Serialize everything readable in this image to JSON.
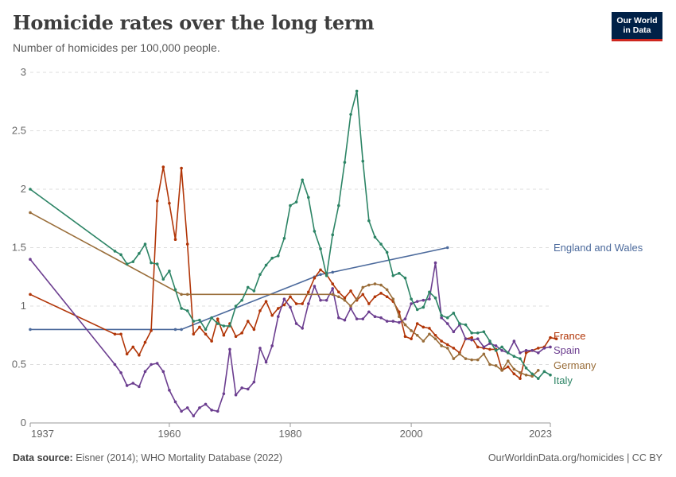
{
  "header": {
    "title": "Homicide rates over the long term",
    "subtitle": "Number of homicides per 100,000 people."
  },
  "logo": {
    "line1": "Our World",
    "line2": "in Data"
  },
  "footer": {
    "source_label": "Data source:",
    "source_text": " Eisner (2014); WHO Mortality Database (2022)",
    "right_text": "OurWorldinData.org/homicides | CC BY"
  },
  "chart_data": {
    "type": "line",
    "title": "Homicide rates over the long term",
    "subtitle": "Number of homicides per 100,000 people.",
    "xlabel": "",
    "ylabel": "",
    "xlim": [
      1937,
      2023
    ],
    "ylim": [
      0,
      3
    ],
    "x_ticks": [
      "1937",
      "1960",
      "1980",
      "2000",
      "2023"
    ],
    "y_ticks": [
      "0",
      "0.5",
      "1",
      "1.5",
      "2",
      "2.5",
      "3"
    ],
    "grid": "horizontal dashed",
    "legend": "right-end labels",
    "series": [
      {
        "name": "England and Wales",
        "color": "#4c6a9c",
        "points": [
          [
            1937,
            0.8
          ],
          [
            1961,
            0.8
          ],
          [
            1962,
            0.8
          ],
          [
            1984,
            1.25
          ],
          [
            1985,
            1.27
          ],
          [
            1986,
            1.28
          ],
          [
            1987,
            1.29
          ],
          [
            2006,
            1.5
          ]
        ]
      },
      {
        "name": "France",
        "color": "#b13507",
        "points": [
          [
            1937,
            1.1
          ],
          [
            1951,
            0.76
          ],
          [
            1952,
            0.76
          ],
          [
            1953,
            0.59
          ],
          [
            1954,
            0.65
          ],
          [
            1955,
            0.58
          ],
          [
            1956,
            0.69
          ],
          [
            1957,
            0.79
          ],
          [
            1958,
            1.9
          ],
          [
            1959,
            2.19
          ],
          [
            1960,
            1.88
          ],
          [
            1961,
            1.57
          ],
          [
            1962,
            2.18
          ],
          [
            1963,
            1.53
          ],
          [
            1964,
            0.76
          ],
          [
            1965,
            0.82
          ],
          [
            1966,
            0.76
          ],
          [
            1967,
            0.7
          ],
          [
            1968,
            0.89
          ],
          [
            1969,
            0.75
          ],
          [
            1970,
            0.85
          ],
          [
            1971,
            0.74
          ],
          [
            1972,
            0.77
          ],
          [
            1973,
            0.87
          ],
          [
            1974,
            0.8
          ],
          [
            1975,
            0.96
          ],
          [
            1976,
            1.04
          ],
          [
            1977,
            0.92
          ],
          [
            1978,
            0.98
          ],
          [
            1979,
            1.01
          ],
          [
            1980,
            1.08
          ],
          [
            1981,
            1.02
          ],
          [
            1982,
            1.02
          ],
          [
            1983,
            1.12
          ],
          [
            1984,
            1.24
          ],
          [
            1985,
            1.31
          ],
          [
            1986,
            1.27
          ],
          [
            1987,
            1.19
          ],
          [
            1988,
            1.12
          ],
          [
            1989,
            1.07
          ],
          [
            1990,
            1.13
          ],
          [
            1991,
            1.05
          ],
          [
            1992,
            1.1
          ],
          [
            1993,
            1.02
          ],
          [
            1994,
            1.08
          ],
          [
            1995,
            1.11
          ],
          [
            1996,
            1.08
          ],
          [
            1997,
            1.04
          ],
          [
            1998,
            0.95
          ],
          [
            1999,
            0.74
          ],
          [
            2000,
            0.72
          ],
          [
            2001,
            0.85
          ],
          [
            2002,
            0.82
          ],
          [
            2003,
            0.81
          ],
          [
            2004,
            0.75
          ],
          [
            2005,
            0.7
          ],
          [
            2006,
            0.67
          ],
          [
            2007,
            0.64
          ],
          [
            2008,
            0.6
          ],
          [
            2009,
            0.72
          ],
          [
            2010,
            0.73
          ],
          [
            2011,
            0.65
          ],
          [
            2012,
            0.64
          ],
          [
            2013,
            0.63
          ],
          [
            2014,
            0.63
          ],
          [
            2015,
            0.45
          ],
          [
            2016,
            0.48
          ],
          [
            2017,
            0.42
          ],
          [
            2018,
            0.38
          ],
          [
            2019,
            0.6
          ],
          [
            2020,
            0.62
          ],
          [
            2021,
            0.64
          ],
          [
            2022,
            0.65
          ],
          [
            2023,
            0.73
          ],
          [
            2024,
            0.72
          ]
        ]
      },
      {
        "name": "Spain",
        "color": "#6b3d8f",
        "points": [
          [
            1937,
            1.4
          ],
          [
            1951,
            0.5
          ],
          [
            1952,
            0.43
          ],
          [
            1953,
            0.32
          ],
          [
            1954,
            0.34
          ],
          [
            1955,
            0.31
          ],
          [
            1956,
            0.44
          ],
          [
            1957,
            0.5
          ],
          [
            1958,
            0.51
          ],
          [
            1959,
            0.44
          ],
          [
            1960,
            0.28
          ],
          [
            1961,
            0.18
          ],
          [
            1962,
            0.1
          ],
          [
            1963,
            0.13
          ],
          [
            1964,
            0.06
          ],
          [
            1965,
            0.13
          ],
          [
            1966,
            0.16
          ],
          [
            1967,
            0.11
          ],
          [
            1968,
            0.1
          ],
          [
            1969,
            0.25
          ],
          [
            1970,
            0.63
          ],
          [
            1971,
            0.24
          ],
          [
            1972,
            0.3
          ],
          [
            1973,
            0.29
          ],
          [
            1974,
            0.35
          ],
          [
            1975,
            0.64
          ],
          [
            1976,
            0.52
          ],
          [
            1977,
            0.66
          ],
          [
            1978,
            0.91
          ],
          [
            1979,
            1.06
          ],
          [
            1980,
            0.99
          ],
          [
            1981,
            0.85
          ],
          [
            1982,
            0.81
          ],
          [
            1983,
            1.02
          ],
          [
            1984,
            1.17
          ],
          [
            1985,
            1.05
          ],
          [
            1986,
            1.05
          ],
          [
            1987,
            1.15
          ],
          [
            1988,
            0.9
          ],
          [
            1989,
            0.88
          ],
          [
            1990,
            0.98
          ],
          [
            1991,
            0.89
          ],
          [
            1992,
            0.89
          ],
          [
            1993,
            0.95
          ],
          [
            1994,
            0.91
          ],
          [
            1995,
            0.9
          ],
          [
            1996,
            0.87
          ],
          [
            1997,
            0.87
          ],
          [
            1998,
            0.86
          ],
          [
            1999,
            0.89
          ],
          [
            2000,
            1.02
          ],
          [
            2001,
            1.04
          ],
          [
            2002,
            1.05
          ],
          [
            2003,
            1.06
          ],
          [
            2004,
            1.37
          ],
          [
            2005,
            0.9
          ],
          [
            2006,
            0.85
          ],
          [
            2007,
            0.78
          ],
          [
            2008,
            0.84
          ],
          [
            2009,
            0.72
          ],
          [
            2010,
            0.71
          ],
          [
            2011,
            0.72
          ],
          [
            2012,
            0.65
          ],
          [
            2013,
            0.68
          ],
          [
            2014,
            0.66
          ],
          [
            2015,
            0.62
          ],
          [
            2016,
            0.6
          ],
          [
            2017,
            0.7
          ],
          [
            2018,
            0.6
          ],
          [
            2019,
            0.62
          ],
          [
            2020,
            0.62
          ],
          [
            2021,
            0.6
          ],
          [
            2022,
            0.64
          ],
          [
            2023,
            0.65
          ]
        ]
      },
      {
        "name": "Germany",
        "color": "#996d39",
        "points": [
          [
            1937,
            1.8
          ],
          [
            1962,
            1.1
          ],
          [
            1963,
            1.1
          ],
          [
            1987,
            1.1
          ],
          [
            1988,
            1.08
          ],
          [
            1989,
            1.05
          ],
          [
            1990,
            1.0
          ],
          [
            1991,
            1.06
          ],
          [
            1992,
            1.16
          ],
          [
            1993,
            1.18
          ],
          [
            1994,
            1.19
          ],
          [
            1995,
            1.18
          ],
          [
            1996,
            1.14
          ],
          [
            1997,
            1.06
          ],
          [
            1998,
            0.91
          ],
          [
            1999,
            0.84
          ],
          [
            2000,
            0.79
          ],
          [
            2001,
            0.75
          ],
          [
            2002,
            0.7
          ],
          [
            2003,
            0.76
          ],
          [
            2004,
            0.72
          ],
          [
            2005,
            0.66
          ],
          [
            2006,
            0.64
          ],
          [
            2007,
            0.55
          ],
          [
            2008,
            0.59
          ],
          [
            2009,
            0.55
          ],
          [
            2010,
            0.54
          ],
          [
            2011,
            0.54
          ],
          [
            2012,
            0.59
          ],
          [
            2013,
            0.5
          ],
          [
            2014,
            0.49
          ],
          [
            2015,
            0.45
          ],
          [
            2016,
            0.53
          ],
          [
            2017,
            0.46
          ],
          [
            2018,
            0.43
          ],
          [
            2019,
            0.41
          ],
          [
            2020,
            0.4
          ],
          [
            2021,
            0.45
          ]
        ]
      },
      {
        "name": "Italy",
        "color": "#2c8465",
        "points": [
          [
            1937,
            2.0
          ],
          [
            1951,
            1.47
          ],
          [
            1952,
            1.44
          ],
          [
            1953,
            1.36
          ],
          [
            1954,
            1.38
          ],
          [
            1955,
            1.45
          ],
          [
            1956,
            1.53
          ],
          [
            1957,
            1.37
          ],
          [
            1958,
            1.36
          ],
          [
            1959,
            1.23
          ],
          [
            1960,
            1.3
          ],
          [
            1961,
            1.14
          ],
          [
            1962,
            0.98
          ],
          [
            1963,
            0.96
          ],
          [
            1964,
            0.87
          ],
          [
            1965,
            0.88
          ],
          [
            1966,
            0.8
          ],
          [
            1967,
            0.9
          ],
          [
            1968,
            0.85
          ],
          [
            1969,
            0.83
          ],
          [
            1970,
            0.83
          ],
          [
            1971,
            1.0
          ],
          [
            1972,
            1.05
          ],
          [
            1973,
            1.16
          ],
          [
            1974,
            1.13
          ],
          [
            1975,
            1.27
          ],
          [
            1976,
            1.35
          ],
          [
            1977,
            1.41
          ],
          [
            1978,
            1.43
          ],
          [
            1979,
            1.58
          ],
          [
            1980,
            1.86
          ],
          [
            1981,
            1.89
          ],
          [
            1982,
            2.08
          ],
          [
            1983,
            1.93
          ],
          [
            1984,
            1.64
          ],
          [
            1985,
            1.49
          ],
          [
            1986,
            1.26
          ],
          [
            1987,
            1.61
          ],
          [
            1988,
            1.86
          ],
          [
            1989,
            2.23
          ],
          [
            1990,
            2.64
          ],
          [
            1991,
            2.84
          ],
          [
            1992,
            2.24
          ],
          [
            1993,
            1.73
          ],
          [
            1994,
            1.59
          ],
          [
            1995,
            1.53
          ],
          [
            1996,
            1.46
          ],
          [
            1997,
            1.26
          ],
          [
            1998,
            1.28
          ],
          [
            1999,
            1.24
          ],
          [
            2000,
            1.06
          ],
          [
            2001,
            0.97
          ],
          [
            2002,
            0.99
          ],
          [
            2003,
            1.12
          ],
          [
            2004,
            1.07
          ],
          [
            2005,
            0.92
          ],
          [
            2006,
            0.9
          ],
          [
            2007,
            0.94
          ],
          [
            2008,
            0.85
          ],
          [
            2009,
            0.84
          ],
          [
            2010,
            0.77
          ],
          [
            2011,
            0.77
          ],
          [
            2012,
            0.78
          ],
          [
            2013,
            0.7
          ],
          [
            2014,
            0.62
          ],
          [
            2015,
            0.65
          ],
          [
            2016,
            0.6
          ],
          [
            2017,
            0.57
          ],
          [
            2018,
            0.55
          ],
          [
            2019,
            0.47
          ],
          [
            2020,
            0.42
          ],
          [
            2021,
            0.38
          ],
          [
            2022,
            0.44
          ],
          [
            2023,
            0.41
          ]
        ]
      }
    ]
  }
}
